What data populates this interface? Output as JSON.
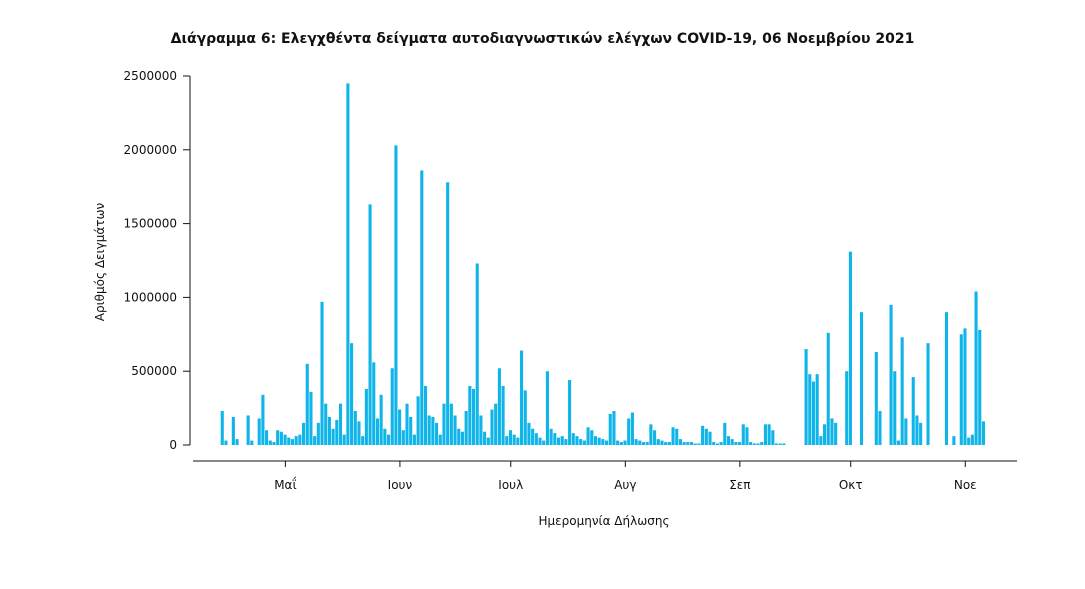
{
  "chart_data": {
    "type": "bar",
    "title": "Διάγραμμα 6: Ελεγχθέντα δείγματα αυτοδιαγνωστικών ελέγχων COVID-19, 06 Νοεμβρίου 2021",
    "xlabel": "Ημερομηνία Δήλωσης",
    "ylabel": "Αριθμός Δειγμάτων",
    "ylim": [
      0,
      2500000
    ],
    "yticks": [
      0,
      500000,
      1000000,
      1500000,
      2000000,
      2500000
    ],
    "ytick_labels": [
      "0",
      "500000",
      "1000000",
      "1500000",
      "2000000",
      "2500000"
    ],
    "xlim": [
      "2021-04-06",
      "2021-11-15"
    ],
    "xticks": [
      {
        "date": "2021-05-01",
        "label": "Μαΐ"
      },
      {
        "date": "2021-06-01",
        "label": "Ιουν"
      },
      {
        "date": "2021-07-01",
        "label": "Ιουλ"
      },
      {
        "date": "2021-08-01",
        "label": "Αυγ"
      },
      {
        "date": "2021-09-01",
        "label": "Σεπ"
      },
      {
        "date": "2021-10-01",
        "label": "Οκτ"
      },
      {
        "date": "2021-11-01",
        "label": "Νοε"
      }
    ],
    "bar_color": "#0fb5e8",
    "x": [
      "2021-04-14",
      "2021-04-15",
      "2021-04-16",
      "2021-04-17",
      "2021-04-18",
      "2021-04-19",
      "2021-04-20",
      "2021-04-21",
      "2021-04-22",
      "2021-04-23",
      "2021-04-24",
      "2021-04-25",
      "2021-04-26",
      "2021-04-27",
      "2021-04-28",
      "2021-04-29",
      "2021-04-30",
      "2021-05-01",
      "2021-05-02",
      "2021-05-03",
      "2021-05-04",
      "2021-05-05",
      "2021-05-06",
      "2021-05-07",
      "2021-05-08",
      "2021-05-09",
      "2021-05-10",
      "2021-05-11",
      "2021-05-12",
      "2021-05-13",
      "2021-05-14",
      "2021-05-15",
      "2021-05-16",
      "2021-05-17",
      "2021-05-18",
      "2021-05-19",
      "2021-05-20",
      "2021-05-21",
      "2021-05-22",
      "2021-05-23",
      "2021-05-24",
      "2021-05-25",
      "2021-05-26",
      "2021-05-27",
      "2021-05-28",
      "2021-05-29",
      "2021-05-30",
      "2021-05-31",
      "2021-06-01",
      "2021-06-02",
      "2021-06-03",
      "2021-06-04",
      "2021-06-05",
      "2021-06-06",
      "2021-06-07",
      "2021-06-08",
      "2021-06-09",
      "2021-06-10",
      "2021-06-11",
      "2021-06-12",
      "2021-06-13",
      "2021-06-14",
      "2021-06-15",
      "2021-06-16",
      "2021-06-17",
      "2021-06-18",
      "2021-06-19",
      "2021-06-20",
      "2021-06-21",
      "2021-06-22",
      "2021-06-23",
      "2021-06-24",
      "2021-06-25",
      "2021-06-26",
      "2021-06-27",
      "2021-06-28",
      "2021-06-29",
      "2021-06-30",
      "2021-07-01",
      "2021-07-02",
      "2021-07-03",
      "2021-07-04",
      "2021-07-05",
      "2021-07-06",
      "2021-07-07",
      "2021-07-08",
      "2021-07-09",
      "2021-07-10",
      "2021-07-11",
      "2021-07-12",
      "2021-07-13",
      "2021-07-14",
      "2021-07-15",
      "2021-07-16",
      "2021-07-17",
      "2021-07-18",
      "2021-07-19",
      "2021-07-20",
      "2021-07-21",
      "2021-07-22",
      "2021-07-23",
      "2021-07-24",
      "2021-07-25",
      "2021-07-26",
      "2021-07-27",
      "2021-07-28",
      "2021-07-29",
      "2021-07-30",
      "2021-07-31",
      "2021-08-01",
      "2021-08-02",
      "2021-08-03",
      "2021-08-04",
      "2021-08-05",
      "2021-08-06",
      "2021-08-07",
      "2021-08-08",
      "2021-08-09",
      "2021-08-10",
      "2021-08-11",
      "2021-08-12",
      "2021-08-13",
      "2021-08-14",
      "2021-08-15",
      "2021-08-16",
      "2021-08-17",
      "2021-08-18",
      "2021-08-19",
      "2021-08-20",
      "2021-08-21",
      "2021-08-22",
      "2021-08-23",
      "2021-08-24",
      "2021-08-25",
      "2021-08-26",
      "2021-08-27",
      "2021-08-28",
      "2021-08-29",
      "2021-08-30",
      "2021-08-31",
      "2021-09-01",
      "2021-09-02",
      "2021-09-03",
      "2021-09-04",
      "2021-09-05",
      "2021-09-06",
      "2021-09-07",
      "2021-09-08",
      "2021-09-09",
      "2021-09-10",
      "2021-09-11",
      "2021-09-12",
      "2021-09-13",
      "2021-09-14",
      "2021-09-15",
      "2021-09-16",
      "2021-09-17",
      "2021-09-18",
      "2021-09-19",
      "2021-09-20",
      "2021-09-21",
      "2021-09-22",
      "2021-09-23",
      "2021-09-24",
      "2021-09-25",
      "2021-09-26",
      "2021-09-27",
      "2021-09-28",
      "2021-09-29",
      "2021-09-30",
      "2021-10-01",
      "2021-10-02",
      "2021-10-03",
      "2021-10-04",
      "2021-10-05",
      "2021-10-06",
      "2021-10-07",
      "2021-10-08",
      "2021-10-09",
      "2021-10-10",
      "2021-10-11",
      "2021-10-12",
      "2021-10-13",
      "2021-10-14",
      "2021-10-15",
      "2021-10-16",
      "2021-10-17",
      "2021-10-18",
      "2021-10-19",
      "2021-10-20",
      "2021-10-21",
      "2021-10-22",
      "2021-10-23",
      "2021-10-24",
      "2021-10-25",
      "2021-10-26",
      "2021-10-27",
      "2021-10-28",
      "2021-10-29",
      "2021-10-30",
      "2021-10-31",
      "2021-11-01",
      "2021-11-02",
      "2021-11-03",
      "2021-11-04",
      "2021-11-05",
      "2021-11-06"
    ],
    "values": [
      230000,
      30000,
      0,
      190000,
      40000,
      0,
      0,
      200000,
      30000,
      0,
      180000,
      340000,
      100000,
      30000,
      20000,
      100000,
      90000,
      70000,
      50000,
      40000,
      60000,
      70000,
      150000,
      550000,
      360000,
      60000,
      150000,
      970000,
      280000,
      190000,
      110000,
      170000,
      280000,
      70000,
      2450000,
      690000,
      230000,
      160000,
      60000,
      380000,
      1630000,
      560000,
      180000,
      340000,
      110000,
      70000,
      520000,
      2030000,
      240000,
      100000,
      280000,
      190000,
      70000,
      330000,
      1860000,
      400000,
      200000,
      190000,
      150000,
      70000,
      280000,
      1780000,
      280000,
      200000,
      110000,
      90000,
      230000,
      400000,
      380000,
      1230000,
      200000,
      90000,
      50000,
      240000,
      280000,
      520000,
      400000,
      60000,
      100000,
      70000,
      50000,
      640000,
      370000,
      150000,
      110000,
      80000,
      50000,
      30000,
      500000,
      110000,
      80000,
      50000,
      60000,
      40000,
      440000,
      80000,
      60000,
      40000,
      30000,
      120000,
      100000,
      60000,
      50000,
      40000,
      30000,
      210000,
      230000,
      30000,
      20000,
      30000,
      180000,
      220000,
      40000,
      30000,
      20000,
      20000,
      140000,
      100000,
      40000,
      30000,
      20000,
      20000,
      120000,
      110000,
      40000,
      20000,
      20000,
      20000,
      10000,
      10000,
      130000,
      110000,
      90000,
      20000,
      10000,
      20000,
      150000,
      60000,
      40000,
      20000,
      20000,
      140000,
      120000,
      20000,
      10000,
      10000,
      20000,
      140000,
      140000,
      100000,
      10000,
      10000,
      10000,
      0,
      0,
      0,
      0,
      0,
      650000,
      480000,
      430000,
      480000,
      60000,
      140000,
      760000,
      180000,
      150000,
      0,
      0,
      500000,
      1310000,
      0,
      0,
      900000,
      0,
      0,
      0,
      630000,
      230000,
      0,
      0,
      950000,
      500000,
      30000,
      730000,
      180000,
      0,
      460000,
      200000,
      150000,
      0,
      690000,
      0,
      0,
      0,
      0,
      900000,
      0,
      60000,
      0,
      750000,
      790000,
      50000,
      70000,
      1040000,
      780000,
      160000
    ]
  }
}
